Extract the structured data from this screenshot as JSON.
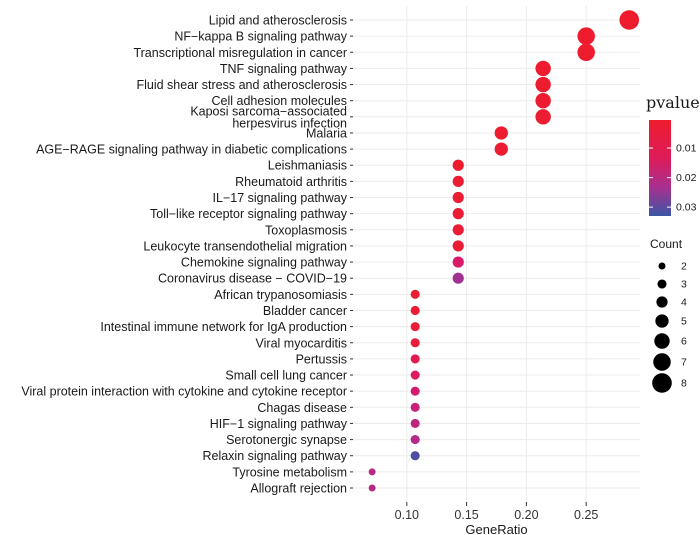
{
  "chart_data": {
    "type": "scatter",
    "title": "",
    "xlabel": "GeneRatio",
    "ylabel": "",
    "xlim": [
      0.055,
      0.295
    ],
    "xticks": [
      0.1,
      0.15,
      0.2,
      0.25
    ],
    "xtick_labels": [
      "0.10",
      "0.15",
      "0.20",
      "0.25"
    ],
    "grid": true,
    "points": [
      {
        "label": "Lipid and atherosclerosis",
        "x": 0.286,
        "count": 8,
        "pvalue": 0.0005
      },
      {
        "label": "NF−kappa B signaling pathway",
        "x": 0.25,
        "count": 7,
        "pvalue": 0.0008
      },
      {
        "label": "Transcriptional misregulation in cancer",
        "x": 0.25,
        "count": 7,
        "pvalue": 0.001
      },
      {
        "label": "TNF signaling pathway",
        "x": 0.214,
        "count": 6,
        "pvalue": 0.0008
      },
      {
        "label": "Fluid shear stress and atherosclerosis",
        "x": 0.214,
        "count": 6,
        "pvalue": 0.001
      },
      {
        "label": "Cell adhesion molecules",
        "x": 0.214,
        "count": 6,
        "pvalue": 0.0012
      },
      {
        "label": "Kaposi sarcoma−associated herpesvirus infection",
        "x": 0.214,
        "count": 6,
        "pvalue": 0.0015
      },
      {
        "label": "Malaria",
        "x": 0.179,
        "count": 5,
        "pvalue": 0.001
      },
      {
        "label": "AGE−RAGE signaling pathway in diabetic complications",
        "x": 0.179,
        "count": 5,
        "pvalue": 0.0015
      },
      {
        "label": "Leishmaniasis",
        "x": 0.143,
        "count": 4,
        "pvalue": 0.001
      },
      {
        "label": "Rheumatoid arthritis",
        "x": 0.143,
        "count": 4,
        "pvalue": 0.0015
      },
      {
        "label": "IL−17 signaling pathway",
        "x": 0.143,
        "count": 4,
        "pvalue": 0.0018
      },
      {
        "label": "Toll−like receptor signaling pathway",
        "x": 0.143,
        "count": 4,
        "pvalue": 0.002
      },
      {
        "label": "Toxoplasmosis",
        "x": 0.143,
        "count": 4,
        "pvalue": 0.0022
      },
      {
        "label": "Leukocyte transendothelial migration",
        "x": 0.143,
        "count": 4,
        "pvalue": 0.0025
      },
      {
        "label": "Chemokine signaling pathway",
        "x": 0.143,
        "count": 4,
        "pvalue": 0.013
      },
      {
        "label": "Coronavirus disease − COVID−19",
        "x": 0.143,
        "count": 4,
        "pvalue": 0.024
      },
      {
        "label": "African trypanosomiasis",
        "x": 0.107,
        "count": 3,
        "pvalue": 0.0015
      },
      {
        "label": "Bladder cancer",
        "x": 0.107,
        "count": 3,
        "pvalue": 0.002
      },
      {
        "label": "Intestinal immune network for IgA production",
        "x": 0.107,
        "count": 3,
        "pvalue": 0.0025
      },
      {
        "label": "Viral myocarditis",
        "x": 0.107,
        "count": 3,
        "pvalue": 0.004
      },
      {
        "label": "Pertussis",
        "x": 0.107,
        "count": 3,
        "pvalue": 0.008
      },
      {
        "label": "Small cell lung cancer",
        "x": 0.107,
        "count": 3,
        "pvalue": 0.012
      },
      {
        "label": "Viral protein interaction with cytokine and cytokine receptor",
        "x": 0.107,
        "count": 3,
        "pvalue": 0.015
      },
      {
        "label": "Chagas disease",
        "x": 0.107,
        "count": 3,
        "pvalue": 0.017
      },
      {
        "label": "HIF−1 signaling pathway",
        "x": 0.107,
        "count": 3,
        "pvalue": 0.019
      },
      {
        "label": "Serotonergic synapse",
        "x": 0.107,
        "count": 3,
        "pvalue": 0.021
      },
      {
        "label": "Relaxin signaling pathway",
        "x": 0.107,
        "count": 3,
        "pvalue": 0.031
      },
      {
        "label": "Tyrosine metabolism",
        "x": 0.071,
        "count": 2,
        "pvalue": 0.02
      },
      {
        "label": "Allograft rejection",
        "x": 0.071,
        "count": 2,
        "pvalue": 0.021
      }
    ],
    "legend": {
      "color_title": "pvalue",
      "color_ticks": [
        0.01,
        0.02,
        0.03
      ],
      "color_tick_labels": [
        "0.01",
        "0.02",
        "0.03"
      ],
      "color_range": [
        0.0005,
        0.033
      ],
      "colors": {
        "low": "#ee1c2d",
        "mid": "#d91a6a",
        "high": "#3b55a4"
      },
      "size_title": "Count",
      "size_values": [
        2,
        3,
        4,
        5,
        6,
        7,
        8
      ],
      "size_labels": [
        "2",
        "3",
        "4",
        "5",
        "6",
        "7",
        "8"
      ],
      "placement": "right"
    }
  }
}
